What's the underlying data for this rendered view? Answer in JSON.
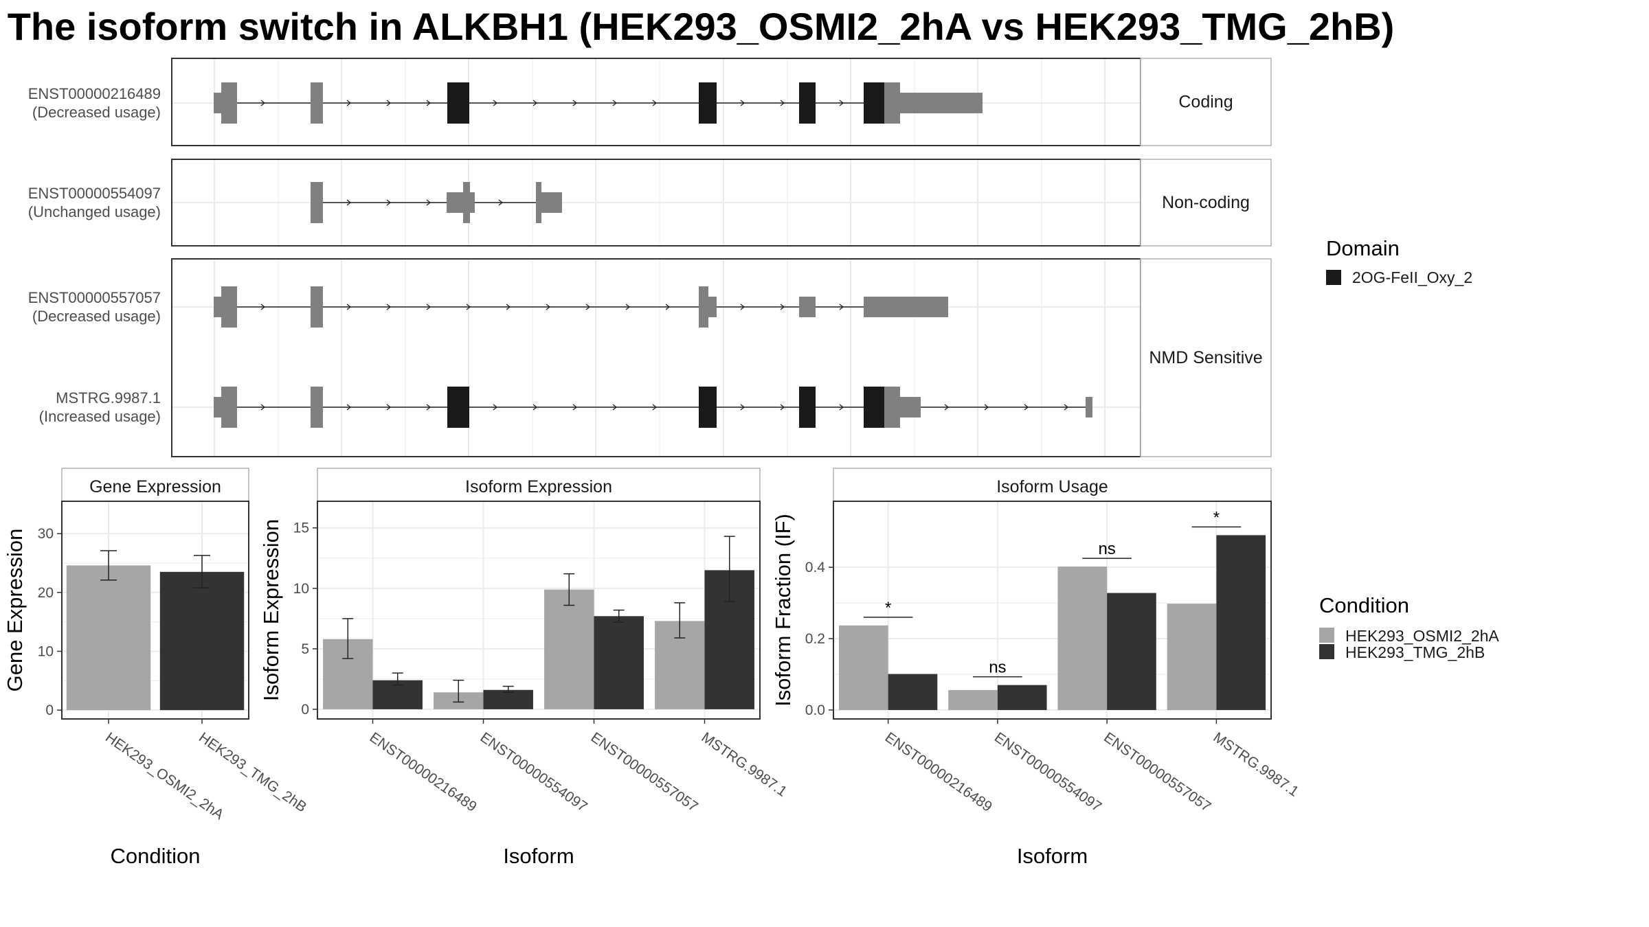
{
  "title": "The isoform switch in ALKBH1 (HEK293_OSMI2_2hA vs HEK293_TMG_2hB)",
  "colors": {
    "domain": "#1a1a1a",
    "exon": "#808080",
    "condA": "#a6a6a6",
    "condB": "#333333",
    "grid": "#ebebeb",
    "panel_border": "#333333",
    "strip_border": "#b3b3b3"
  },
  "transcript_plot": {
    "groups": [
      {
        "label": "Coding",
        "isoforms": [
          "ENST00000216489"
        ]
      },
      {
        "label": "Non-coding",
        "isoforms": [
          "ENST00000554097"
        ]
      },
      {
        "label": "NMD Sensitive",
        "isoforms": [
          "ENST00000557057",
          "MSTRG.9987.1"
        ]
      }
    ],
    "isoforms": [
      {
        "id": "ENST00000216489",
        "usage": "(Decreased usage)"
      },
      {
        "id": "ENST00000554097",
        "usage": "(Unchanged usage)"
      },
      {
        "id": "ENST00000557057",
        "usage": "(Decreased usage)"
      },
      {
        "id": "MSTRG.9987.1",
        "usage": "(Increased usage)"
      }
    ]
  },
  "domain_legend": {
    "title": "Domain",
    "items": [
      "2OG-FeII_Oxy_2"
    ]
  },
  "condition_legend": {
    "title": "Condition",
    "items": [
      "HEK293_OSMI2_2hA",
      "HEK293_TMG_2hB"
    ]
  },
  "chart_data": [
    {
      "type": "bar",
      "panel": "Gene Expression",
      "xlabel": "Condition",
      "ylabel": "Gene Expression",
      "categories": [
        "HEK293_OSMI2_2hA",
        "HEK293_TMG_2hB"
      ],
      "values": [
        24.6,
        23.5
      ],
      "errors": [
        [
          22.1,
          27.1
        ],
        [
          20.8,
          26.3
        ]
      ],
      "ylim": [
        -1.5,
        35.5
      ],
      "yticks": [
        0,
        10,
        20,
        30
      ]
    },
    {
      "type": "bar",
      "panel": "Isoform Expression",
      "xlabel": "Isoform",
      "ylabel": "Isoform Expression",
      "categories": [
        "ENST00000216489",
        "ENST00000554097",
        "ENST00000557057",
        "MSTRG.9987.1"
      ],
      "series": [
        {
          "name": "HEK293_OSMI2_2hA",
          "values": [
            5.8,
            1.4,
            9.9,
            7.3
          ],
          "errors": [
            [
              4.2,
              7.5
            ],
            [
              0.6,
              2.4
            ],
            [
              8.6,
              11.2
            ],
            [
              5.9,
              8.8
            ]
          ]
        },
        {
          "name": "HEK293_TMG_2hB",
          "values": [
            2.4,
            1.6,
            7.7,
            11.5
          ],
          "errors": [
            [
              2.0,
              3.0
            ],
            [
              1.4,
              1.9
            ],
            [
              7.2,
              8.2
            ],
            [
              8.9,
              14.3
            ]
          ]
        }
      ],
      "ylim": [
        -0.8,
        17.2
      ],
      "yticks": [
        0,
        5,
        10,
        15
      ]
    },
    {
      "type": "bar",
      "panel": "Isoform Usage",
      "xlabel": "Isoform",
      "ylabel": "Isoform Fraction (IF)",
      "categories": [
        "ENST00000216489",
        "ENST00000554097",
        "ENST00000557057",
        "MSTRG.9987.1"
      ],
      "series": [
        {
          "name": "HEK293_OSMI2_2hA",
          "values": [
            0.237,
            0.056,
            0.402,
            0.298
          ]
        },
        {
          "name": "HEK293_TMG_2hB",
          "values": [
            0.101,
            0.07,
            0.328,
            0.49
          ]
        }
      ],
      "significance": [
        "*",
        "ns",
        "ns",
        "*"
      ],
      "ylim": [
        -0.025,
        0.585
      ],
      "yticks": [
        0.0,
        0.2,
        0.4
      ],
      "ytick_labels": [
        "0.0",
        "0.2",
        "0.4"
      ]
    }
  ]
}
